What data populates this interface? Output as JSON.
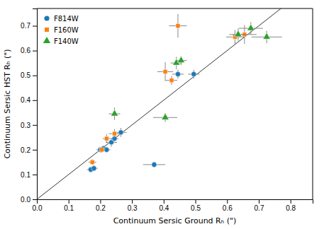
{
  "chart_data": {
    "type": "scatter",
    "xlabel": "Continuum Sersic Ground Rₕ (\")",
    "ylabel": "Continuum Sersic HST Rₕ (\")",
    "xlim": [
      0.0,
      0.87
    ],
    "ylim": [
      0.0,
      0.77
    ],
    "xticks": [
      {
        "value": 0.0,
        "label": "0.0"
      },
      0.1,
      0.2,
      0.3,
      0.4,
      0.5,
      0.6,
      0.7,
      0.8
    ],
    "yticks": [
      {
        "value": 0.0,
        "label": "0.0"
      },
      0.1,
      0.2,
      0.3,
      0.4,
      0.5,
      0.6,
      0.7
    ],
    "grid": false,
    "legend": "upper left",
    "series": [
      {
        "name": "F814W",
        "marker": "circle",
        "x": [
          0.17,
          0.18,
          0.2,
          0.21,
          0.22,
          0.235,
          0.245,
          0.265,
          0.37,
          0.445,
          0.495
        ],
        "values": [
          0.12,
          0.125,
          0.2,
          0.205,
          0.2,
          0.23,
          0.245,
          0.27,
          0.14,
          0.505,
          0.505
        ],
        "xerr": [
          0.012,
          0.012,
          0.012,
          0.012,
          0.012,
          0.018,
          0.012,
          0.018,
          0.035,
          0.018,
          0.018
        ],
        "yerr": [
          0.012,
          0.012,
          0.012,
          0.012,
          0.012,
          0.018,
          0.012,
          0.018,
          0.012,
          0.018,
          0.018
        ]
      },
      {
        "name": "F160W",
        "marker": "square",
        "x": [
          0.175,
          0.205,
          0.22,
          0.245,
          0.405,
          0.425,
          0.445,
          0.625,
          0.655
        ],
        "values": [
          0.15,
          0.2,
          0.245,
          0.265,
          0.515,
          0.48,
          0.7,
          0.655,
          0.665
        ],
        "xerr": [
          0.012,
          0.012,
          0.012,
          0.018,
          0.025,
          0.018,
          0.028,
          0.028,
          0.038
        ],
        "yerr": [
          0.012,
          0.012,
          0.018,
          0.018,
          0.038,
          0.018,
          0.048,
          0.028,
          0.038
        ]
      },
      {
        "name": "F140W",
        "marker": "triangle",
        "x": [
          0.245,
          0.405,
          0.44,
          0.455,
          0.635,
          0.675,
          0.725
        ],
        "values": [
          0.345,
          0.33,
          0.55,
          0.56,
          0.665,
          0.69,
          0.655
        ],
        "xerr": [
          0.018,
          0.038,
          0.018,
          0.018,
          0.028,
          0.038,
          0.048
        ],
        "yerr": [
          0.025,
          0.018,
          0.025,
          0.018,
          0.025,
          0.025,
          0.025
        ]
      }
    ]
  }
}
